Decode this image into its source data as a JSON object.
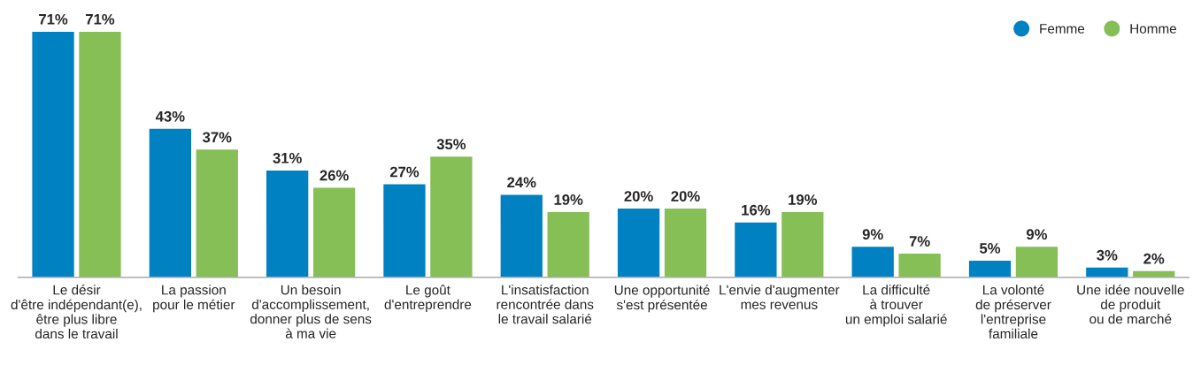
{
  "chart_data": {
    "type": "bar",
    "categories": [
      "Le désir\nd'être indépendant(e),\nêtre plus libre\ndans le travail",
      "La passion\npour le métier",
      "Un besoin\nd'accomplissement,\ndonner plus de sens\nà ma vie",
      "Le goût\nd'entreprendre",
      "L'insatisfaction\nrencontrée dans\nle travail salarié",
      "Une opportunité\ns'est présentée",
      "L'envie d'augmenter\nmes revenus",
      "La difficulté\nà trouver\nun emploi salarié",
      "La volonté\nde préserver\nl'entreprise\nfamiliale",
      "Une idée nouvelle\nde produit\nou de marché"
    ],
    "series": [
      {
        "name": "Femme",
        "color": "#0081c2",
        "values": [
          71,
          43,
          31,
          27,
          24,
          20,
          16,
          9,
          5,
          3
        ],
        "value_labels": [
          "71%",
          "43%",
          "31%",
          "27%",
          "24%",
          "20%",
          "16%",
          "9%",
          "5%",
          "3%"
        ]
      },
      {
        "name": "Homme",
        "color": "#86bf56",
        "values": [
          71,
          37,
          26,
          35,
          19,
          20,
          19,
          7,
          9,
          2
        ],
        "value_labels": [
          "71%",
          "37%",
          "26%",
          "35%",
          "19%",
          "20%",
          "19%",
          "7%",
          "9%",
          "2%"
        ]
      }
    ],
    "legend": "top right",
    "grid": false
  }
}
